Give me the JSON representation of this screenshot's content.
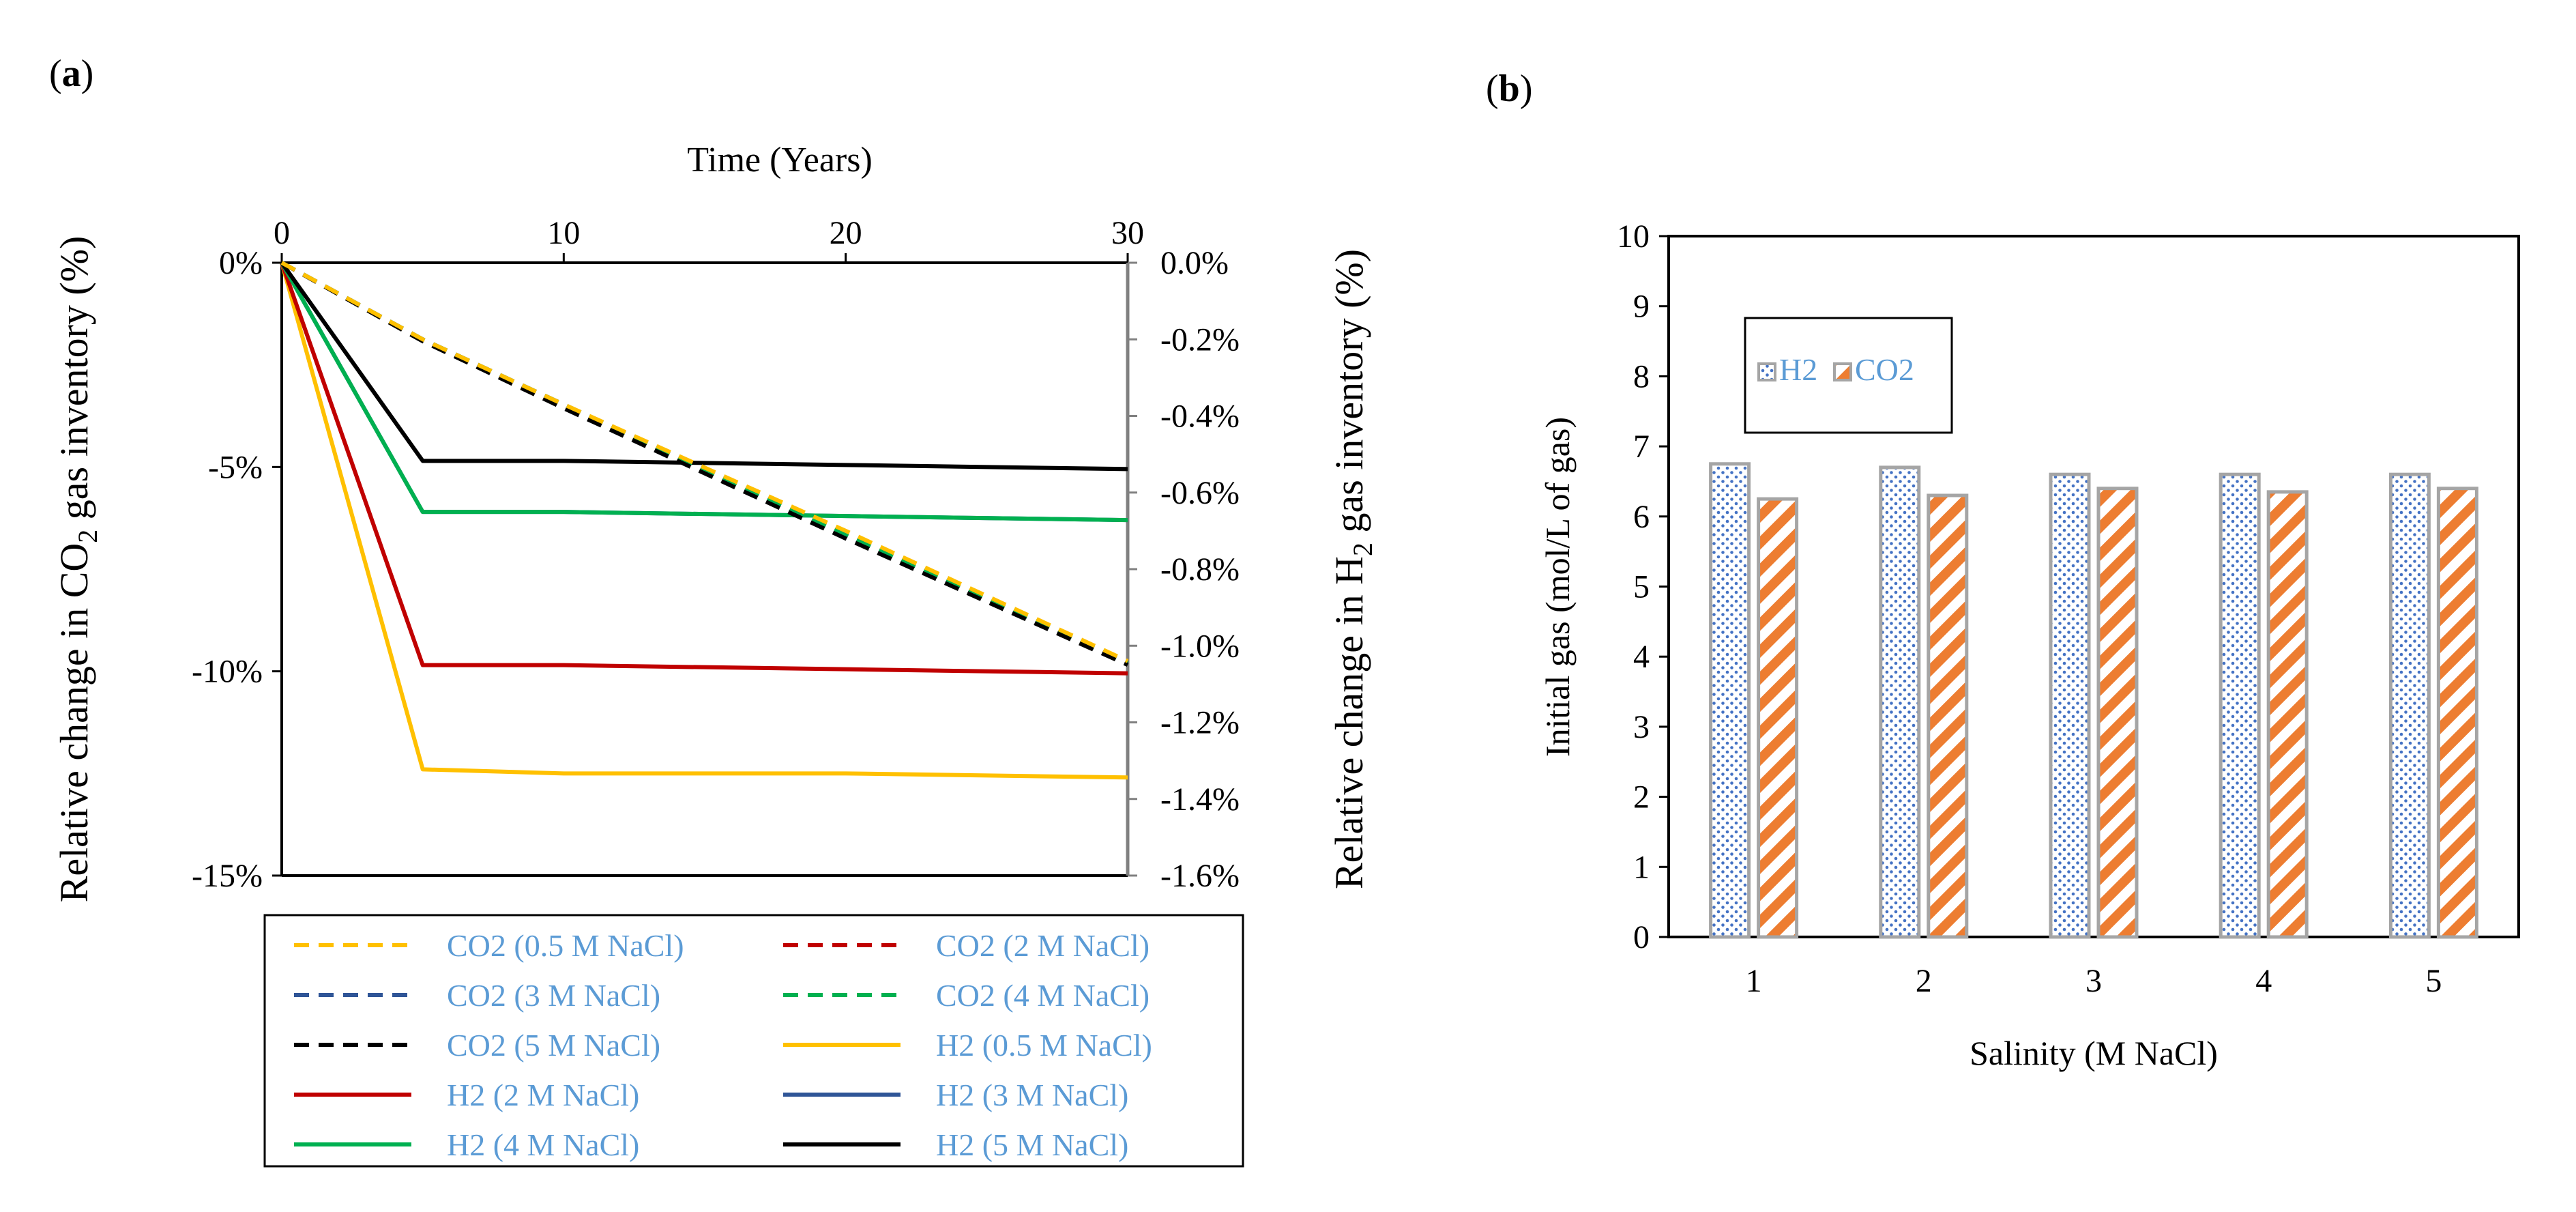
{
  "panels": {
    "a_label_open": "(",
    "a_label_letter": "a",
    "a_label_close": ")",
    "b_label_open": "(",
    "b_label_letter": "b",
    "b_label_close": ")"
  },
  "chart_data": [
    {
      "panel": "a",
      "type": "line",
      "xlabel": "Time (Years)",
      "ylabel_left_prefix": "Relative change in CO",
      "ylabel_left_sub": "2",
      "ylabel_left_suffix": " gas inventory (%)",
      "ylabel_right_prefix": "Relative change in H",
      "ylabel_right_sub": "2",
      "ylabel_right_suffix": " gas inventory (%)",
      "xlim": [
        0,
        30
      ],
      "xticks": [
        "0",
        "10",
        "20",
        "30"
      ],
      "ylim_left": [
        -15,
        0
      ],
      "yticks_left": [
        "0%",
        "-5%",
        "-10%",
        "-15%"
      ],
      "ylim_right": [
        -1.6,
        0
      ],
      "yticks_right": [
        "0.0%",
        "-0.2%",
        "-0.4%",
        "-0.6%",
        "-0.8%",
        "-1.0%",
        "-1.2%",
        "-1.4%",
        "-1.6%"
      ],
      "x": [
        0,
        5,
        10,
        20,
        30
      ],
      "series": [
        {
          "name": "H2 (0.5 M NaCl)",
          "axis": "left",
          "dash": false,
          "color": "#FFC000",
          "values": [
            0,
            -12.4,
            -12.5,
            -12.5,
            -12.6
          ]
        },
        {
          "name": "H2 (2 M NaCl)",
          "axis": "left",
          "dash": false,
          "color": "#C00000",
          "values": [
            0,
            -9.85,
            -9.85,
            -9.95,
            -10.05
          ]
        },
        {
          "name": "H2 (3 M NaCl)",
          "axis": "left",
          "dash": false,
          "color": "#2F5597",
          "values": [
            0,
            -6.1,
            -6.1,
            -6.2,
            -6.3
          ]
        },
        {
          "name": "H2 (4 M NaCl)",
          "axis": "left",
          "dash": false,
          "color": "#00B050",
          "values": [
            0,
            -6.1,
            -6.1,
            -6.2,
            -6.3
          ]
        },
        {
          "name": "H2 (5 M NaCl)",
          "axis": "left",
          "dash": false,
          "color": "#000000",
          "values": [
            0,
            -4.85,
            -4.85,
            -4.95,
            -5.05
          ]
        },
        {
          "name": "CO2 (2 M NaCl)",
          "axis": "right",
          "dash": true,
          "color": "#C00000",
          "values": [
            0,
            -0.2,
            -0.37,
            -0.71,
            -1.045
          ]
        },
        {
          "name": "CO2 (3 M NaCl)",
          "axis": "right",
          "dash": true,
          "color": "#2F5597",
          "values": [
            0,
            -0.2,
            -0.37,
            -0.71,
            -1.045
          ]
        },
        {
          "name": "CO2 (4 M NaCl)",
          "axis": "right",
          "dash": true,
          "color": "#00B050",
          "values": [
            0,
            -0.2,
            -0.37,
            -0.71,
            -1.045
          ]
        },
        {
          "name": "CO2 (5 M NaCl)",
          "axis": "right",
          "dash": true,
          "color": "#000000",
          "values": [
            0,
            -0.205,
            -0.38,
            -0.72,
            -1.05
          ]
        },
        {
          "name": "CO2 (0.5 M NaCl)",
          "axis": "right",
          "dash": true,
          "color": "#FFC000",
          "values": [
            0,
            -0.2,
            -0.37,
            -0.7,
            -1.04
          ]
        }
      ],
      "legend": [
        "CO2 (0.5 M NaCl)",
        "CO2 (2 M NaCl)",
        "CO2 (3 M NaCl)",
        "CO2 (4 M NaCl)",
        "CO2 (5 M NaCl)",
        "H2 (0.5 M NaCl)",
        "H2 (2 M NaCl)",
        "H2 (3 M NaCl)",
        "H2 (4 M NaCl)",
        "H2 (5 M NaCl)"
      ],
      "legend_position": "bottom"
    },
    {
      "panel": "b",
      "type": "bar",
      "xlabel": "Salinity (M NaCl)",
      "ylabel": "Initial gas (mol/L of gas)",
      "categories": [
        "1",
        "2",
        "3",
        "4",
        "5"
      ],
      "ylim": [
        0,
        10
      ],
      "yticks": [
        "0",
        "1",
        "2",
        "3",
        "4",
        "5",
        "6",
        "7",
        "8",
        "9",
        "10"
      ],
      "series": [
        {
          "name": "H2",
          "pattern": "dots",
          "color": "#4472C4",
          "values": [
            6.75,
            6.7,
            6.6,
            6.6,
            6.6
          ]
        },
        {
          "name": "CO2",
          "pattern": "diagonal-stripes",
          "color": "#ED7D31",
          "values": [
            6.25,
            6.3,
            6.4,
            6.35,
            6.4
          ]
        }
      ],
      "legend_position": "top-left"
    }
  ]
}
